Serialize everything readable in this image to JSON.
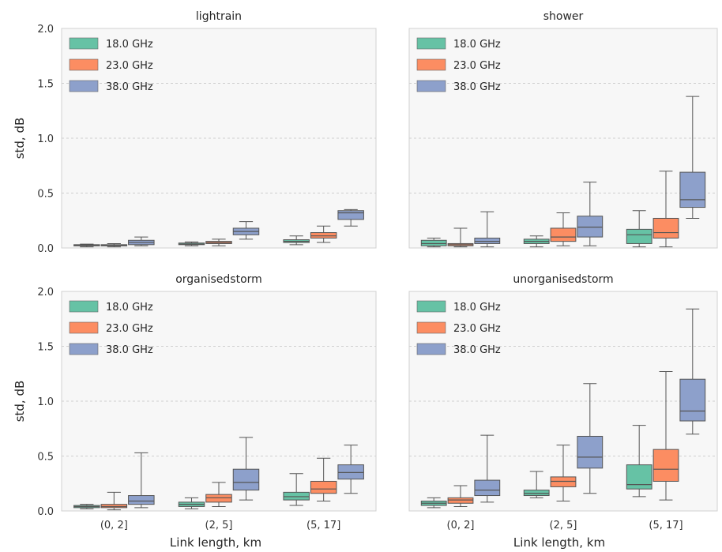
{
  "figure": {
    "y_label": "std, dB",
    "x_label": "Link length, km"
  },
  "legend": [
    {
      "label": "18.0 GHz",
      "color": "#66c2a5"
    },
    {
      "label": "23.0 GHz",
      "color": "#fc8d62"
    },
    {
      "label": "38.0 GHz",
      "color": "#8da0cb"
    }
  ],
  "chart_data": [
    {
      "type": "box",
      "title": "lightrain",
      "categories": [
        "(0, 2]",
        "(2, 5]",
        "(5, 17]"
      ],
      "ylim": [
        0,
        2.0
      ],
      "yticks": [
        "0.0",
        "0.5",
        "1.0",
        "1.5",
        "2.0"
      ],
      "grid": "horizontal dashed",
      "legend_position": "upper-left",
      "series": [
        {
          "name": "18.0 GHz",
          "boxes": [
            {
              "whislo": 0.01,
              "q1": 0.02,
              "med": 0.025,
              "q3": 0.03,
              "whishi": 0.035
            },
            {
              "whislo": 0.02,
              "q1": 0.03,
              "med": 0.035,
              "q3": 0.045,
              "whishi": 0.055
            },
            {
              "whislo": 0.03,
              "q1": 0.05,
              "med": 0.06,
              "q3": 0.075,
              "whishi": 0.11
            }
          ]
        },
        {
          "name": "23.0 GHz",
          "boxes": [
            {
              "whislo": 0.01,
              "q1": 0.02,
              "med": 0.025,
              "q3": 0.03,
              "whishi": 0.04
            },
            {
              "whislo": 0.02,
              "q1": 0.04,
              "med": 0.05,
              "q3": 0.06,
              "whishi": 0.08
            },
            {
              "whislo": 0.05,
              "q1": 0.09,
              "med": 0.11,
              "q3": 0.14,
              "whishi": 0.2
            }
          ]
        },
        {
          "name": "38.0 GHz",
          "boxes": [
            {
              "whislo": 0.02,
              "q1": 0.03,
              "med": 0.05,
              "q3": 0.07,
              "whishi": 0.1
            },
            {
              "whislo": 0.08,
              "q1": 0.12,
              "med": 0.15,
              "q3": 0.18,
              "whishi": 0.24
            },
            {
              "whislo": 0.2,
              "q1": 0.26,
              "med": 0.32,
              "q3": 0.34,
              "whishi": 0.35
            }
          ]
        }
      ]
    },
    {
      "type": "box",
      "title": "shower",
      "categories": [
        "(0, 2]",
        "(2, 5]",
        "(5, 17]"
      ],
      "ylim": [
        0,
        2.0
      ],
      "yticks": [],
      "grid": "horizontal dashed",
      "legend_position": "upper-left",
      "series": [
        {
          "name": "18.0 GHz",
          "boxes": [
            {
              "whislo": 0.01,
              "q1": 0.02,
              "med": 0.04,
              "q3": 0.07,
              "whishi": 0.09
            },
            {
              "whislo": 0.01,
              "q1": 0.04,
              "med": 0.06,
              "q3": 0.08,
              "whishi": 0.11
            },
            {
              "whislo": 0.01,
              "q1": 0.04,
              "med": 0.12,
              "q3": 0.17,
              "whishi": 0.34
            }
          ]
        },
        {
          "name": "23.0 GHz",
          "boxes": [
            {
              "whislo": 0.01,
              "q1": 0.02,
              "med": 0.03,
              "q3": 0.04,
              "whishi": 0.18
            },
            {
              "whislo": 0.02,
              "q1": 0.06,
              "med": 0.1,
              "q3": 0.18,
              "whishi": 0.32
            },
            {
              "whislo": 0.01,
              "q1": 0.09,
              "med": 0.14,
              "q3": 0.27,
              "whishi": 0.7
            }
          ]
        },
        {
          "name": "38.0 GHz",
          "boxes": [
            {
              "whislo": 0.01,
              "q1": 0.04,
              "med": 0.06,
              "q3": 0.09,
              "whishi": 0.33
            },
            {
              "whislo": 0.02,
              "q1": 0.1,
              "med": 0.19,
              "q3": 0.29,
              "whishi": 0.6
            },
            {
              "whislo": 0.27,
              "q1": 0.37,
              "med": 0.44,
              "q3": 0.69,
              "whishi": 1.38
            }
          ]
        }
      ]
    },
    {
      "type": "box",
      "title": "organisedstorm",
      "categories": [
        "(0, 2]",
        "(2, 5]",
        "(5, 17]"
      ],
      "ylim": [
        0,
        2.0
      ],
      "yticks": [
        "0.0",
        "0.5",
        "1.0",
        "1.5",
        "2.0"
      ],
      "grid": "horizontal dashed",
      "legend_position": "upper-left",
      "series": [
        {
          "name": "18.0 GHz",
          "boxes": [
            {
              "whislo": 0.02,
              "q1": 0.03,
              "med": 0.04,
              "q3": 0.05,
              "whishi": 0.06
            },
            {
              "whislo": 0.02,
              "q1": 0.04,
              "med": 0.06,
              "q3": 0.08,
              "whishi": 0.12
            },
            {
              "whislo": 0.05,
              "q1": 0.1,
              "med": 0.13,
              "q3": 0.17,
              "whishi": 0.34
            }
          ]
        },
        {
          "name": "23.0 GHz",
          "boxes": [
            {
              "whislo": 0.01,
              "q1": 0.03,
              "med": 0.04,
              "q3": 0.06,
              "whishi": 0.17
            },
            {
              "whislo": 0.04,
              "q1": 0.08,
              "med": 0.12,
              "q3": 0.15,
              "whishi": 0.26
            },
            {
              "whislo": 0.09,
              "q1": 0.16,
              "med": 0.2,
              "q3": 0.27,
              "whishi": 0.48
            }
          ]
        },
        {
          "name": "38.0 GHz",
          "boxes": [
            {
              "whislo": 0.03,
              "q1": 0.06,
              "med": 0.09,
              "q3": 0.14,
              "whishi": 0.53
            },
            {
              "whislo": 0.1,
              "q1": 0.19,
              "med": 0.26,
              "q3": 0.38,
              "whishi": 0.67
            },
            {
              "whislo": 0.16,
              "q1": 0.29,
              "med": 0.35,
              "q3": 0.42,
              "whishi": 0.6
            }
          ]
        }
      ]
    },
    {
      "type": "box",
      "title": "unorganisedstorm",
      "categories": [
        "(0, 2]",
        "(2, 5]",
        "(5, 17]"
      ],
      "ylim": [
        0,
        2.0
      ],
      "yticks": [],
      "grid": "horizontal dashed",
      "legend_position": "upper-left",
      "series": [
        {
          "name": "18.0 GHz",
          "boxes": [
            {
              "whislo": 0.03,
              "q1": 0.05,
              "med": 0.07,
              "q3": 0.09,
              "whishi": 0.12
            },
            {
              "whislo": 0.12,
              "q1": 0.14,
              "med": 0.16,
              "q3": 0.19,
              "whishi": 0.36
            },
            {
              "whislo": 0.13,
              "q1": 0.2,
              "med": 0.24,
              "q3": 0.42,
              "whishi": 0.78
            }
          ]
        },
        {
          "name": "23.0 GHz",
          "boxes": [
            {
              "whislo": 0.04,
              "q1": 0.07,
              "med": 0.1,
              "q3": 0.12,
              "whishi": 0.23
            },
            {
              "whislo": 0.09,
              "q1": 0.22,
              "med": 0.27,
              "q3": 0.31,
              "whishi": 0.6
            }
          ]
        },
        {
          "name": "38.0 GHz",
          "boxes": [
            {
              "whislo": 0.08,
              "q1": 0.14,
              "med": 0.19,
              "q3": 0.28,
              "whishi": 0.69
            },
            {
              "whislo": 0.16,
              "q1": 0.39,
              "med": 0.49,
              "q3": 0.68,
              "whishi": 1.16
            },
            {
              "whislo": 0.7,
              "q1": 0.82,
              "med": 0.91,
              "q3": 1.2,
              "whishi": 1.84
            }
          ]
        }
      ],
      "series_extra": [
        {
          "name": "23.0 GHz",
          "category": "(5, 17]",
          "box": {
            "whislo": 0.1,
            "q1": 0.27,
            "med": 0.38,
            "q3": 0.56,
            "whishi": 1.27
          }
        }
      ]
    }
  ]
}
